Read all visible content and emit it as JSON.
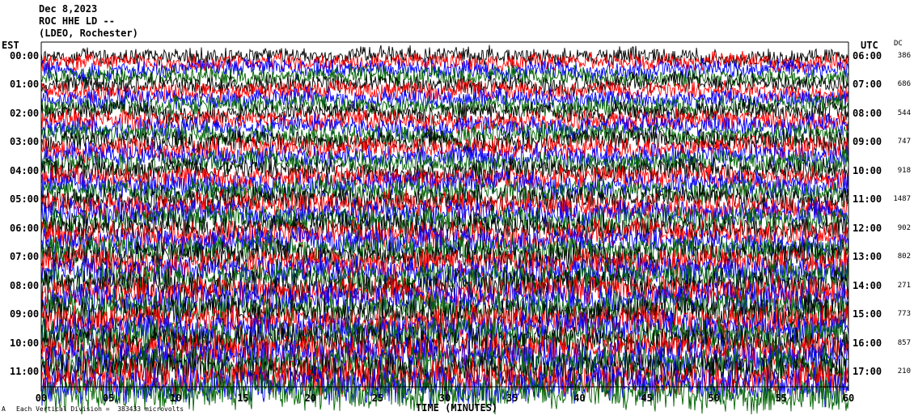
{
  "header": {
    "date": "Dec 8,2023",
    "station": "ROC HHE LD --",
    "network": "(LDEO, Rochester)"
  },
  "axes": {
    "left_title": "EST",
    "right_title": "UTC",
    "dc_title": "DC",
    "x_title": "TIME (MINUTES)"
  },
  "footer": {
    "scale_note": "Each Vertical Division =  383433 microvolts"
  },
  "colors": {
    "trace_cycle": [
      "#000000",
      "#ff0000",
      "#0000ff",
      "#006400"
    ],
    "background": "#ffffff"
  },
  "chart_data": {
    "type": "line",
    "subtype": "helicorder (seismogram drum plot)",
    "x": {
      "label": "TIME (MINUTES)",
      "range": [
        0,
        60
      ],
      "ticks": [
        "00",
        "05",
        "10",
        "15",
        "20",
        "25",
        "30",
        "35",
        "40",
        "45",
        "50",
        "55",
        "60"
      ]
    },
    "rows": [
      {
        "est": "00:00",
        "utc": "06:00",
        "dc": "386"
      },
      {
        "est": "01:00",
        "utc": "07:00",
        "dc": "686"
      },
      {
        "est": "02:00",
        "utc": "08:00",
        "dc": "544"
      },
      {
        "est": "03:00",
        "utc": "09:00",
        "dc": "747"
      },
      {
        "est": "04:00",
        "utc": "10:00",
        "dc": "918"
      },
      {
        "est": "05:00",
        "utc": "11:00",
        "dc": "1487"
      },
      {
        "est": "06:00",
        "utc": "12:00",
        "dc": "902"
      },
      {
        "est": "07:00",
        "utc": "13:00",
        "dc": "802"
      },
      {
        "est": "08:00",
        "utc": "14:00",
        "dc": "271"
      },
      {
        "est": "09:00",
        "utc": "15:00",
        "dc": "773"
      },
      {
        "est": "10:00",
        "utc": "16:00",
        "dc": "857"
      },
      {
        "est": "11:00",
        "utc": "17:00",
        "dc": "210"
      }
    ],
    "vertical_division_microvolts": 383433,
    "traces_per_hour": 4
  }
}
